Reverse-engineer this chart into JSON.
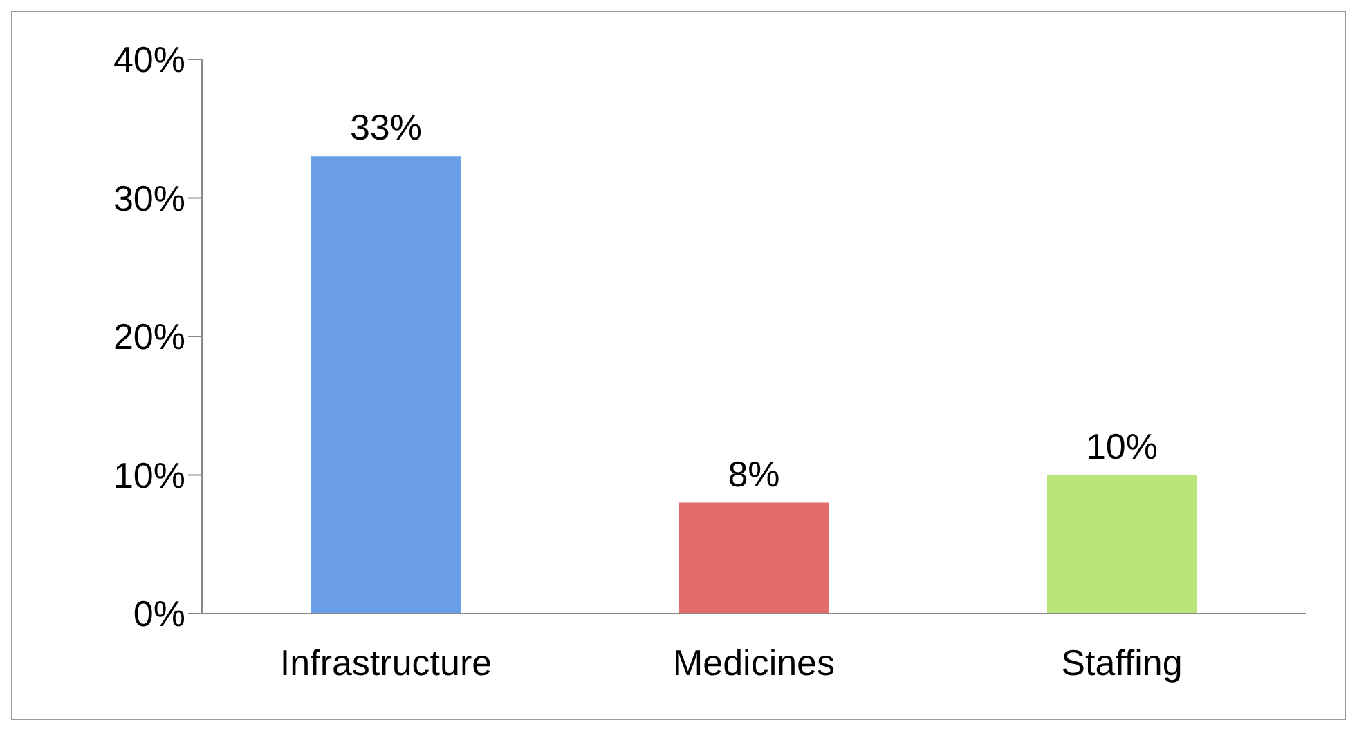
{
  "chart_data": {
    "type": "bar",
    "categories": [
      "Infrastructure",
      "Medicines",
      "Staffing"
    ],
    "values": [
      33,
      8,
      10
    ],
    "colors": [
      "#6a9ee6",
      "#e46c6c",
      "#b9e67a"
    ],
    "ylim": [
      0,
      40
    ],
    "yticks": [
      {
        "value": 0,
        "label": "0%"
      },
      {
        "value": 10,
        "label": "10%"
      },
      {
        "value": 20,
        "label": "20%"
      },
      {
        "value": 30,
        "label": "30%"
      },
      {
        "value": 40,
        "label": "40%"
      }
    ],
    "value_labels": [
      "33%",
      "8%",
      "10%"
    ],
    "grid": false,
    "legend": false
  }
}
